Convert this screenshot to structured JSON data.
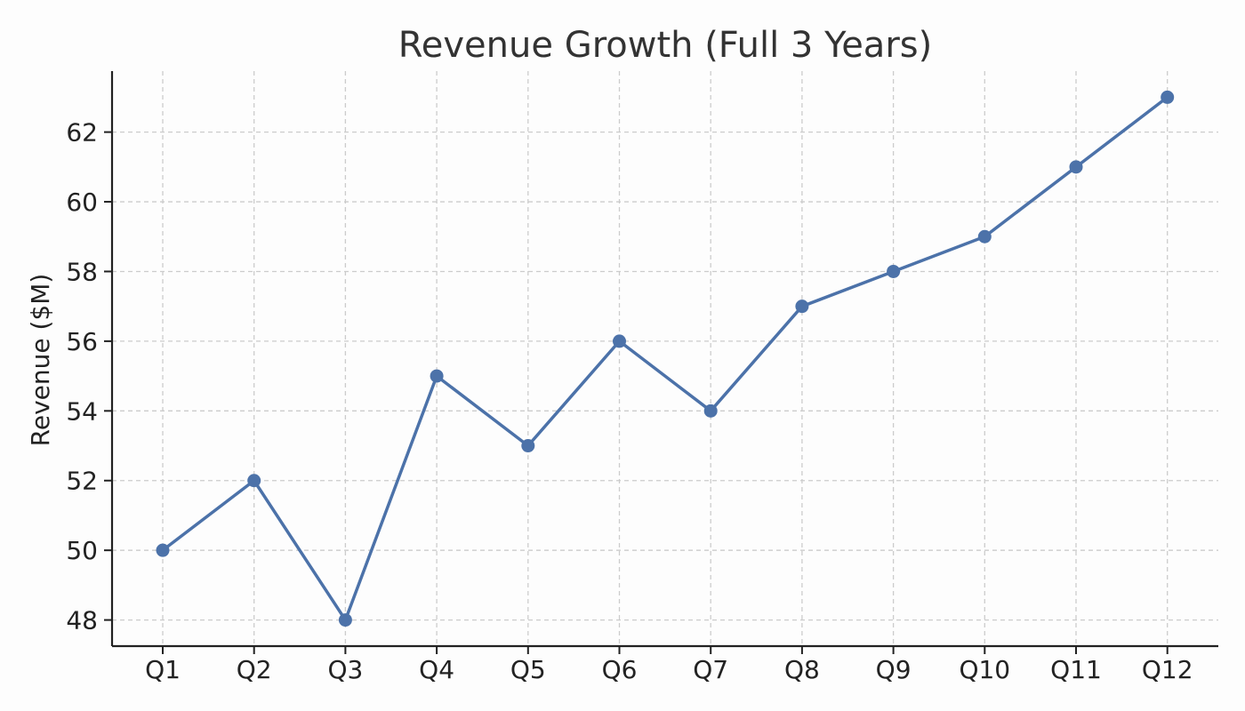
{
  "chart_data": {
    "type": "line",
    "title": "Revenue Growth (Full 3 Years)",
    "xlabel": "",
    "ylabel": "Revenue ($M)",
    "categories": [
      "Q1",
      "Q2",
      "Q3",
      "Q4",
      "Q5",
      "Q6",
      "Q7",
      "Q8",
      "Q9",
      "Q10",
      "Q11",
      "Q12"
    ],
    "series": [
      {
        "values": [
          50,
          52,
          48,
          55,
          53,
          56,
          54,
          57,
          58,
          59,
          61,
          63
        ],
        "color": "#4c72a9"
      }
    ],
    "yticks": [
      48,
      50,
      52,
      54,
      56,
      58,
      60,
      62
    ],
    "ylim": [
      47.25,
      63.75
    ],
    "grid": true,
    "legend": "none"
  }
}
